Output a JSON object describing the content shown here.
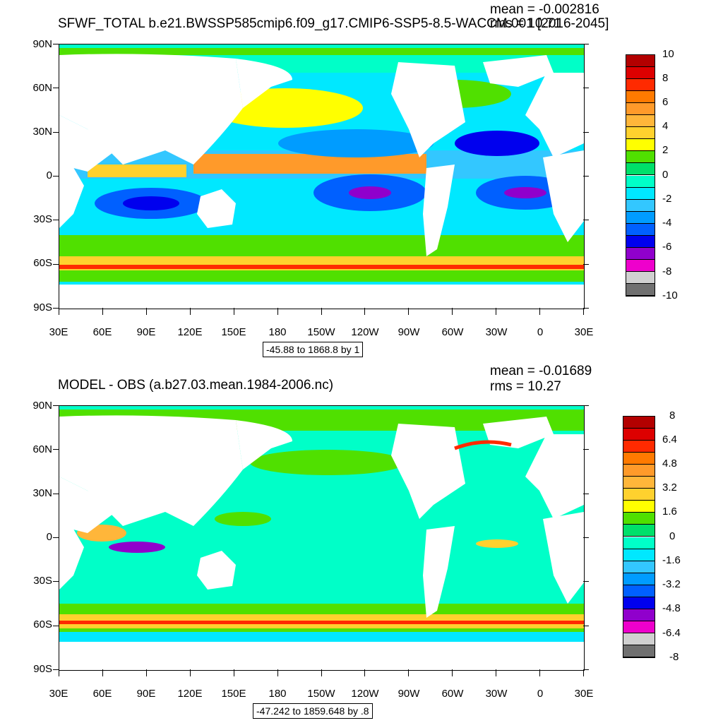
{
  "panels": [
    {
      "title": "SFWF_TOTAL b.e21.BWSSP585cmip6.f09_g17.CMIP6-SSP5-8.5-WACCM.001 [2016-2045]",
      "mean": "mean = -0.002816",
      "rms": "rms = 10.71",
      "range_label": "-45.88 to 1868.8 by 1",
      "colorbar_labels": [
        "10",
        "8",
        "6",
        "4",
        "2",
        "0",
        "-2",
        "-4",
        "-6",
        "-8",
        "-10"
      ]
    },
    {
      "title": "MODEL - OBS (a.b27.03.mean.1984-2006.nc)",
      "mean": "mean = -0.01689",
      "rms": "rms = 10.27",
      "range_label": "-47.242 to 1859.648 by .8",
      "colorbar_labels": [
        "8",
        "6.4",
        "4.8",
        "3.2",
        "1.6",
        "0",
        "-1.6",
        "-3.2",
        "-4.8",
        "-6.4",
        "-8"
      ]
    }
  ],
  "lat_labels": [
    "90N",
    "60N",
    "30N",
    "0",
    "30S",
    "60S",
    "90S"
  ],
  "lon_labels": [
    "30E",
    "60E",
    "90E",
    "120E",
    "150E",
    "180",
    "150W",
    "120W",
    "90W",
    "60W",
    "30W",
    "0",
    "30E"
  ],
  "colorbar_colors": [
    "#b30000",
    "#dd0000",
    "#ff2a00",
    "#ff7a00",
    "#ff9a2a",
    "#ffb63a",
    "#ffd12e",
    "#ffff00",
    "#50e000",
    "#00e06a",
    "#00ffc8",
    "#00e8ff",
    "#33c7ff",
    "#009cff",
    "#0060ff",
    "#0000ee",
    "#9000cc",
    "#ee00cc",
    "#d0d0d0",
    "#707070"
  ]
}
